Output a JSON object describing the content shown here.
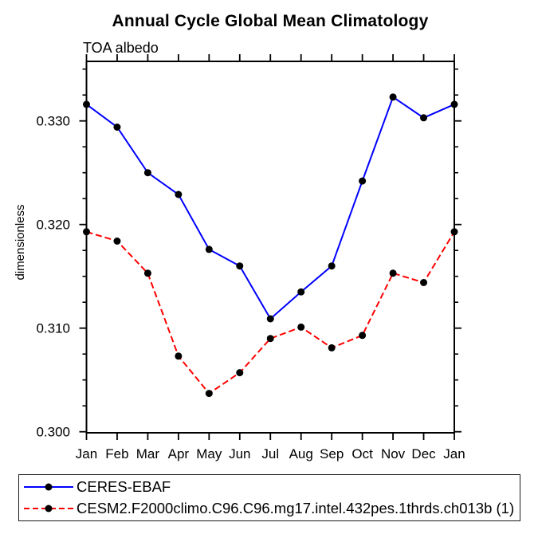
{
  "chart_data": {
    "type": "line",
    "title": "Annual Cycle Global Mean Climatology",
    "subtitle": "TOA albedo",
    "ylabel": "dimensionless",
    "xlabel": "",
    "categories": [
      "Jan",
      "Feb",
      "Mar",
      "Apr",
      "May",
      "Jun",
      "Jul",
      "Aug",
      "Sep",
      "Oct",
      "Nov",
      "Dec",
      "Jan"
    ],
    "ylim": [
      0.2999,
      0.3358
    ],
    "yticks": [
      0.3,
      0.31,
      0.32,
      0.33
    ],
    "ytick_labels": [
      "0.300",
      "0.310",
      "0.320",
      "0.330"
    ],
    "y_minor_tick_step": 0.0025,
    "grid": false,
    "legend_position": "bottom-left-box",
    "series": [
      {
        "name": "CERES-EBAF",
        "color": "#0000ff",
        "line_style": "solid",
        "marker": "filled-black-circle",
        "values": [
          0.3316,
          0.3294,
          0.325,
          0.3229,
          0.3176,
          0.316,
          0.3109,
          0.3135,
          0.316,
          0.3242,
          0.3323,
          0.3303,
          0.3316
        ]
      },
      {
        "name": "CESM2.F2000climo.C96.C96.mg17.intel.432pes.1thrds.ch013b (1)",
        "color": "#ff0000",
        "line_style": "dashed",
        "marker": "filled-black-circle",
        "values": [
          0.3193,
          0.3184,
          0.3153,
          0.3073,
          0.3037,
          0.3057,
          0.309,
          0.3101,
          0.3081,
          0.3093,
          0.3153,
          0.3144,
          0.3193
        ]
      }
    ]
  }
}
